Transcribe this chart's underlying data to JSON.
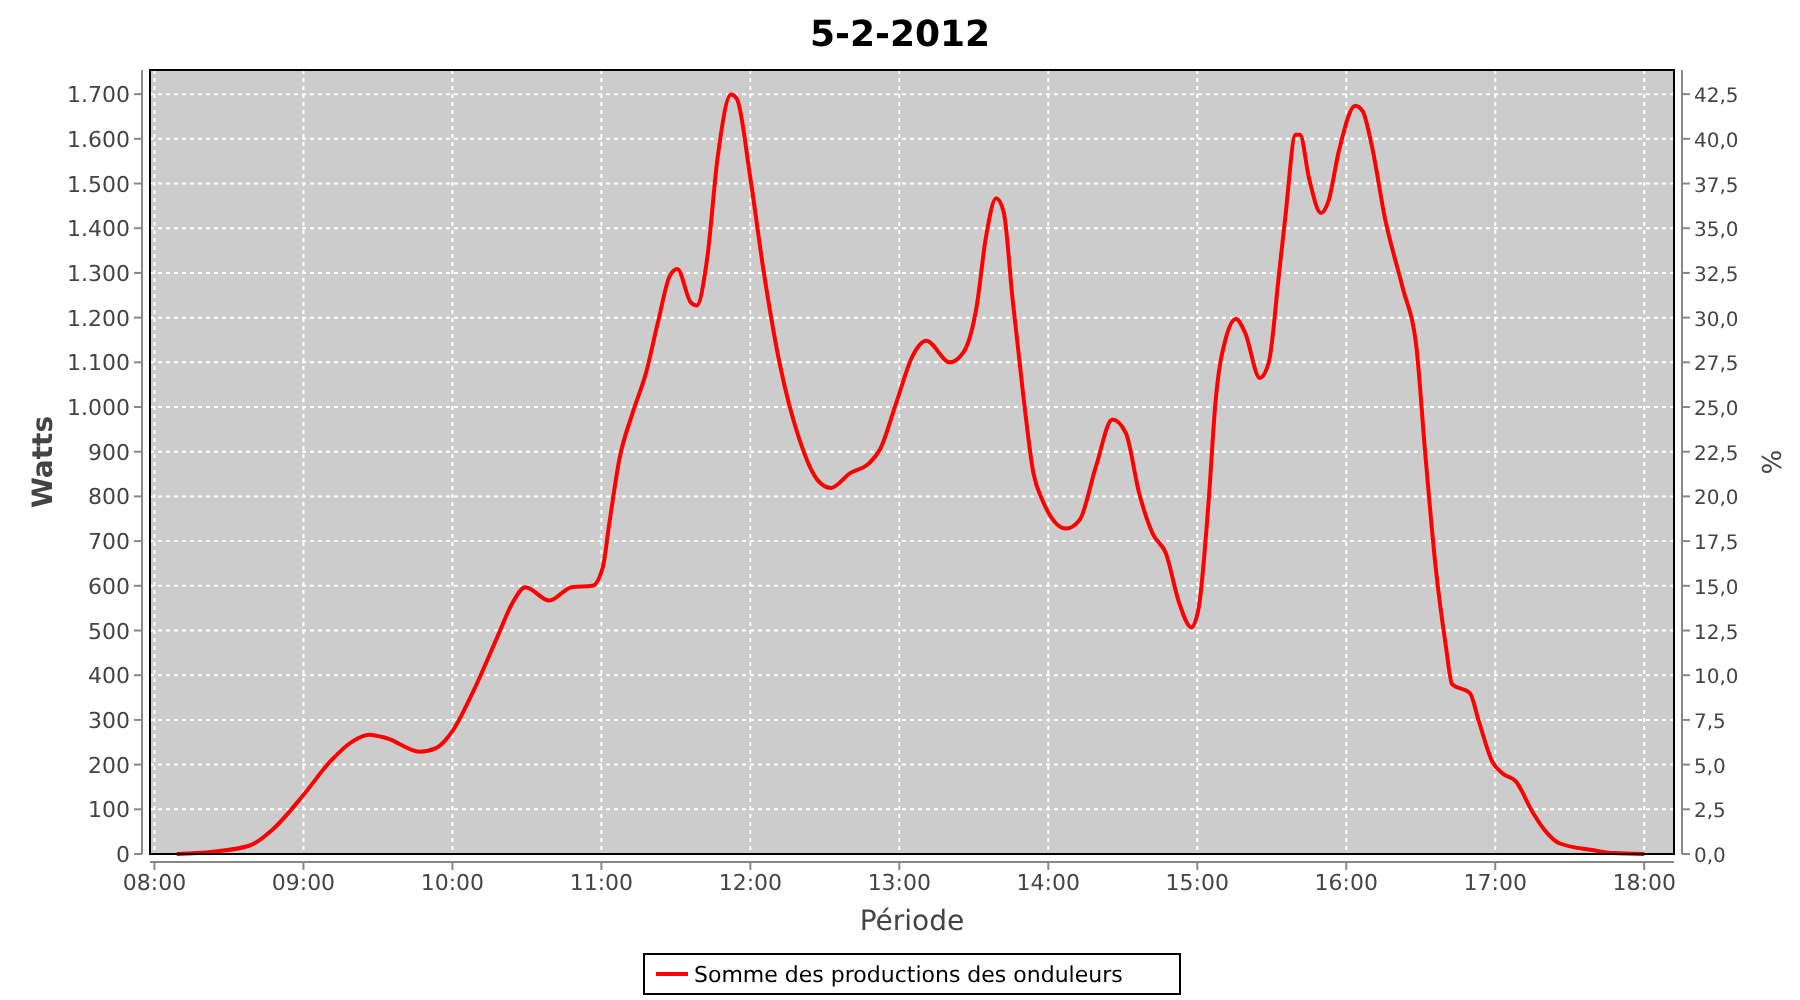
{
  "chart_data": {
    "type": "line",
    "title": "5-2-2012",
    "xlabel": "Période",
    "ylabel": "Watts",
    "y2label": "%",
    "xlim": [
      7.97,
      18.2
    ],
    "xticks": [
      {
        "value": 8,
        "label": "08:00"
      },
      {
        "value": 9,
        "label": "09:00"
      },
      {
        "value": 10,
        "label": "10:00"
      },
      {
        "value": 11,
        "label": "11:00"
      },
      {
        "value": 12,
        "label": "12:00"
      },
      {
        "value": 13,
        "label": "13:00"
      },
      {
        "value": 14,
        "label": "14:00"
      },
      {
        "value": 15,
        "label": "15:00"
      },
      {
        "value": 16,
        "label": "16:00"
      },
      {
        "value": 17,
        "label": "17:00"
      },
      {
        "value": 18,
        "label": "18:00"
      }
    ],
    "ylim": [
      0,
      1754
    ],
    "yticks": [
      0,
      100,
      200,
      300,
      400,
      500,
      600,
      700,
      800,
      900,
      {
        "value": 1000,
        "label": "1.000"
      },
      {
        "value": 1100,
        "label": "1.100"
      },
      {
        "value": 1200,
        "label": "1.200"
      },
      {
        "value": 1300,
        "label": "1.300"
      },
      {
        "value": 1400,
        "label": "1.400"
      },
      {
        "value": 1500,
        "label": "1.500"
      },
      {
        "value": 1600,
        "label": "1.600"
      },
      {
        "value": 1700,
        "label": "1.700"
      }
    ],
    "y2lim": [
      0,
      43.85
    ],
    "y2ticks": [
      {
        "value": 0,
        "label": "0,0"
      },
      {
        "value": 2.5,
        "label": "2,5"
      },
      {
        "value": 5,
        "label": "5,0"
      },
      {
        "value": 7.5,
        "label": "7,5"
      },
      {
        "value": 10,
        "label": "10,0"
      },
      {
        "value": 12.5,
        "label": "12,5"
      },
      {
        "value": 15,
        "label": "15,0"
      },
      {
        "value": 17.5,
        "label": "17,5"
      },
      {
        "value": 20,
        "label": "20,0"
      },
      {
        "value": 22.5,
        "label": "22,5"
      },
      {
        "value": 25,
        "label": "25,0"
      },
      {
        "value": 27.5,
        "label": "27,5"
      },
      {
        "value": 30,
        "label": "30,0"
      },
      {
        "value": 32.5,
        "label": "32,5"
      },
      {
        "value": 35,
        "label": "35,0"
      },
      {
        "value": 37.5,
        "label": "37,5"
      },
      {
        "value": 40,
        "label": "40,0"
      },
      {
        "value": 42.5,
        "label": "42,5"
      }
    ],
    "grid": true,
    "legend": "bottom",
    "marker": "none",
    "line_style": "solid",
    "series": [
      {
        "name": "Somme des productions des onduleurs",
        "color": "#ff0000",
        "x": [
          8.15,
          8.39,
          8.64,
          8.8,
          9.0,
          9.18,
          9.33,
          9.44,
          9.56,
          9.78,
          9.89,
          10.0,
          10.13,
          10.31,
          10.4,
          10.49,
          10.65,
          10.8,
          10.94,
          11.01,
          11.05,
          11.12,
          11.21,
          11.3,
          11.38,
          11.46,
          11.51,
          11.6,
          11.64,
          11.71,
          11.78,
          11.87,
          11.91,
          12.0,
          12.09,
          12.2,
          12.33,
          12.45,
          12.54,
          12.67,
          12.8,
          12.87,
          12.98,
          13.09,
          13.18,
          13.34,
          13.43,
          13.52,
          13.58,
          13.65,
          13.7,
          13.76,
          13.83,
          13.9,
          13.96,
          14.12,
          14.21,
          14.32,
          14.43,
          14.52,
          14.61,
          14.7,
          14.79,
          14.88,
          14.96,
          15.01,
          15.08,
          15.12,
          15.19,
          15.26,
          15.32,
          15.42,
          15.48,
          15.55,
          15.59,
          15.66,
          15.69,
          15.75,
          15.83,
          15.88,
          15.95,
          16.06,
          16.11,
          16.17,
          16.26,
          16.38,
          16.47,
          16.53,
          16.6,
          16.67,
          16.71,
          16.83,
          16.89,
          16.98,
          17.05,
          17.14,
          17.25,
          17.34,
          17.43,
          17.65,
          17.79,
          18.0
        ],
        "values": [
          0,
          5,
          19,
          57,
          132,
          207,
          252,
          267,
          259,
          229,
          237,
          275,
          357,
          492,
          560,
          597,
          567,
          597,
          600,
          642,
          732,
          882,
          987,
          1077,
          1190,
          1294,
          1309,
          1234,
          1227,
          1332,
          1557,
          1699,
          1689,
          1512,
          1302,
          1092,
          927,
          837,
          819,
          852,
          875,
          905,
          1010,
          1115,
          1148,
          1100,
          1122,
          1227,
          1377,
          1467,
          1437,
          1242,
          1032,
          852,
          792,
          728,
          747,
          867,
          972,
          942,
          807,
          717,
          672,
          560,
          507,
          552,
          807,
          1002,
          1152,
          1197,
          1167,
          1065,
          1100,
          1302,
          1422,
          1609,
          1609,
          1512,
          1434,
          1460,
          1572,
          1674,
          1662,
          1587,
          1422,
          1265,
          1137,
          897,
          642,
          462,
          380,
          360,
          297,
          207,
          180,
          162,
          94,
          50,
          24,
          9,
          2,
          0
        ]
      }
    ]
  }
}
